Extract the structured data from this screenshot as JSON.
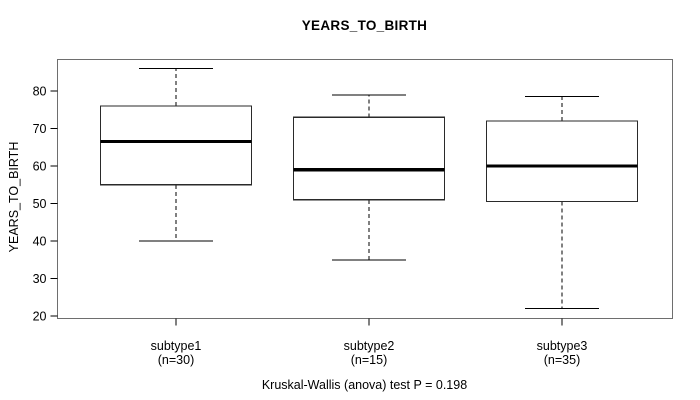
{
  "title": "YEARS_TO_BIRTH",
  "y_axis_label": "YEARS_TO_BIRTH",
  "caption": "Kruskal-Wallis (anova) test P = 0.198",
  "colors": {
    "line": "#000000",
    "box_stroke": "#2a2a2a",
    "plot_border": "#6e6e6e",
    "background": "#ffffff"
  },
  "chart_data": {
    "type": "boxplot",
    "title": "YEARS_TO_BIRTH",
    "ylabel": "YEARS_TO_BIRTH",
    "xlabel": "",
    "ylim": [
      19,
      88.5
    ],
    "yticks": [
      20,
      30,
      40,
      50,
      60,
      70,
      80
    ],
    "grid": false,
    "legend": false,
    "categories": [
      "subtype1",
      "subtype2",
      "subtype3"
    ],
    "category_sublabels": [
      "(n=30)",
      "(n=15)",
      "(n=35)"
    ],
    "series": [
      {
        "name": "subtype1",
        "n": 30,
        "whisker_low": 40,
        "q1": 55,
        "median": 66.5,
        "q3": 76,
        "whisker_high": 86
      },
      {
        "name": "subtype2",
        "n": 15,
        "whisker_low": 35,
        "q1": 51,
        "median": 59,
        "q3": 73,
        "whisker_high": 79
      },
      {
        "name": "subtype3",
        "n": 35,
        "whisker_low": 22,
        "q1": 50.5,
        "median": 60,
        "q3": 72,
        "whisker_high": 78.5
      }
    ],
    "annotation": "Kruskal-Wallis (anova) test P = 0.198"
  }
}
